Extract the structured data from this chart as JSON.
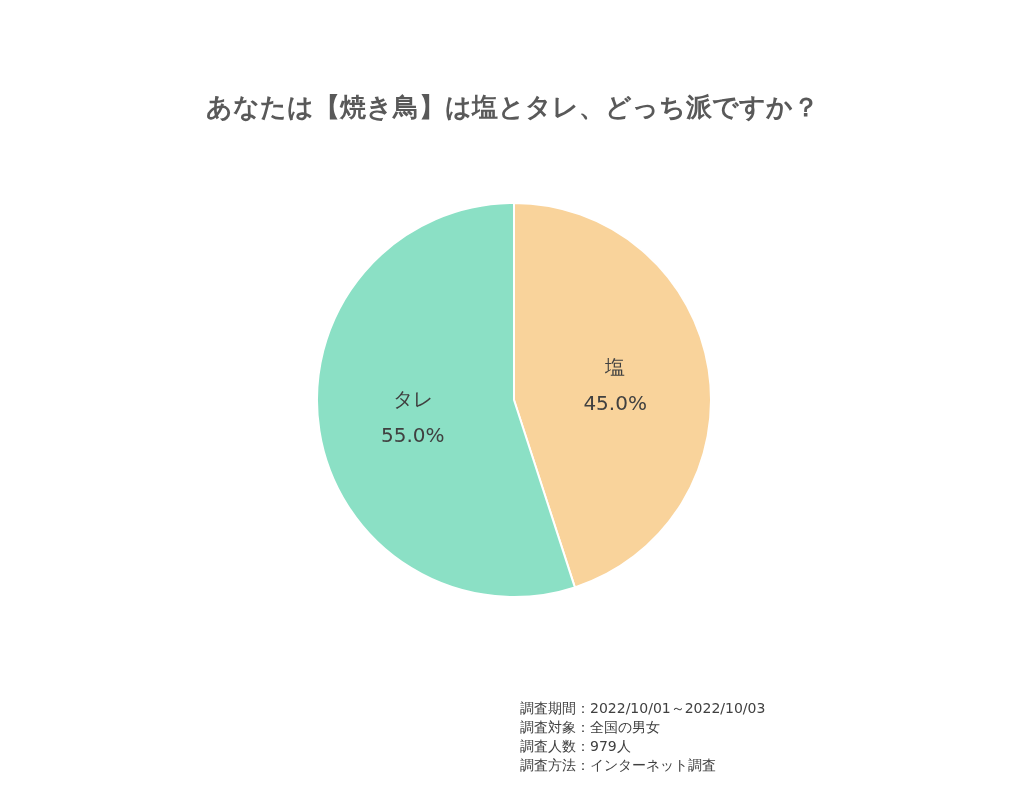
{
  "chart_data": {
    "type": "pie",
    "title": "あなたは【焼き鳥】は塩とタレ、どっち派ですか？",
    "categories": [
      "塩",
      "タレ"
    ],
    "values": [
      45.0,
      55.0
    ],
    "colors": [
      "#f9d39b",
      "#8be0c5"
    ],
    "value_labels": [
      "45.0%",
      "55.0%"
    ],
    "annotations": [
      "調査期間：2022/10/01～2022/10/03",
      "調査対象：全国の男女",
      "調査人数：979人",
      "調査方法：インターネット調査"
    ]
  }
}
